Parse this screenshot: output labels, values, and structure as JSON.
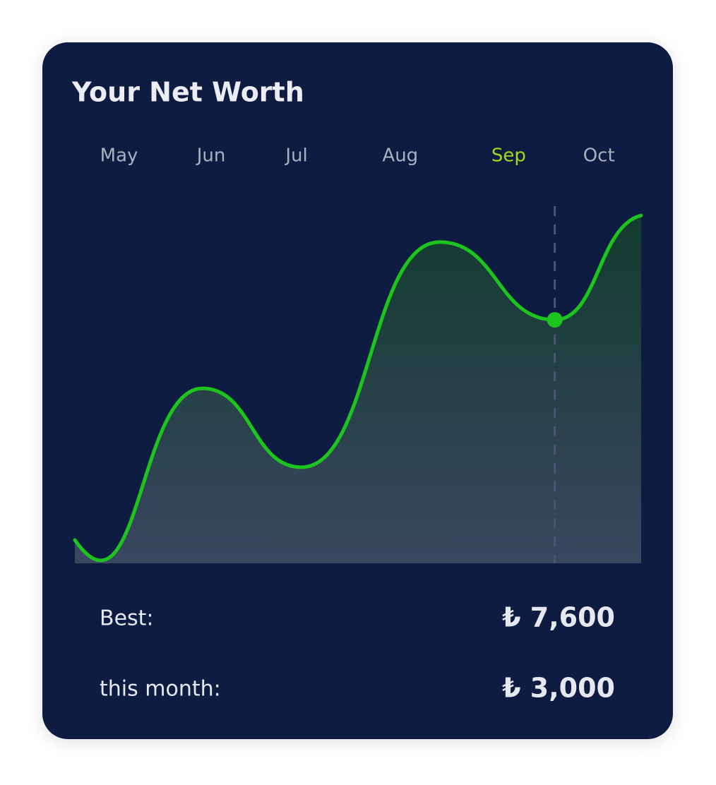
{
  "chart_data": {
    "type": "area",
    "title": "Your Net Worth",
    "xticks": [
      {
        "value": 0,
        "label": "May"
      },
      {
        "value": 0.96,
        "label": "Jun"
      },
      {
        "value": 1.85,
        "label": "Jul"
      },
      {
        "value": 2.93,
        "label": "Aug"
      },
      {
        "value": 4.06,
        "label": "Sep"
      },
      {
        "value": 5,
        "label": "Oct"
      }
    ],
    "highlight_tick": 4,
    "xlim": [
      -0.46,
      5.44
    ],
    "ylim": [
      0,
      100
    ],
    "series": [
      {
        "color": "#1ec41e",
        "x": [
          -0.46,
          0.87,
          1.9,
          3.34,
          4.54,
          5.44
        ],
        "values": [
          6.5,
          48.8,
          26.8,
          89.6,
          67.9,
          97.0
        ]
      }
    ],
    "marker_index": 4,
    "stats": [
      {
        "label": "Best:",
        "value": "₺ 7,600"
      },
      {
        "label": "this month:",
        "value": "₺ 3,000"
      }
    ]
  }
}
